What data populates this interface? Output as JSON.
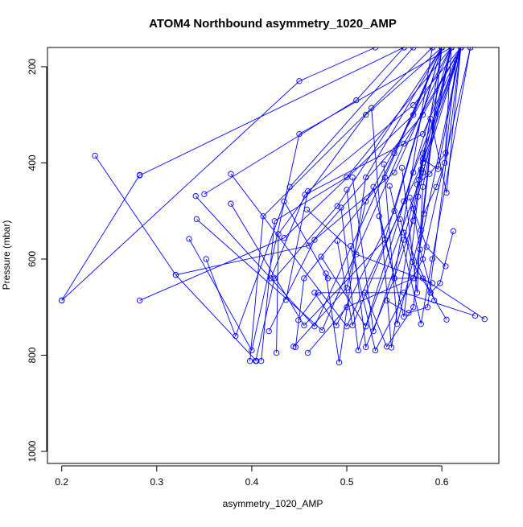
{
  "chart_data": {
    "type": "line",
    "title": "ATOM4 Northbound asymmetry_1020_AMP",
    "xlabel": "asymmetry_1020_AMP",
    "ylabel": "Pressure (mbar)",
    "xlim": [
      0.185,
      0.66
    ],
    "ylim": [
      1025,
      160
    ],
    "y_reversed": true,
    "x_ticks": [
      "0.2",
      "0.3",
      "0.4",
      "0.5",
      "0.6"
    ],
    "x_tick_values": [
      0.2,
      0.3,
      0.4,
      0.5,
      0.6
    ],
    "y_ticks": [
      "200",
      "400",
      "600",
      "800",
      "1000"
    ],
    "y_tick_values": [
      200,
      400,
      600,
      800,
      1000
    ],
    "grid": false,
    "legend": "none",
    "line_color": "#0000ff",
    "marker": "open-circle",
    "series": [
      {
        "points": [
          [
            0.2,
            686
          ],
          [
            0.45,
            230
          ],
          [
            0.53,
            160
          ]
        ]
      },
      {
        "points": [
          [
            0.235,
            385
          ],
          [
            0.32,
            633
          ],
          [
            0.405,
            812
          ]
        ]
      },
      {
        "points": [
          [
            0.282,
            425
          ],
          [
            0.2,
            686
          ]
        ]
      },
      {
        "points": [
          [
            0.282,
            426
          ],
          [
            0.56,
            160
          ]
        ]
      },
      {
        "points": [
          [
            0.282,
            686
          ],
          [
            0.434,
            556
          ],
          [
            0.57,
            300
          ],
          [
            0.6,
            160
          ]
        ]
      },
      {
        "points": [
          [
            0.32,
            633
          ],
          [
            0.46,
            572
          ],
          [
            0.58,
            300
          ],
          [
            0.62,
            160
          ]
        ]
      },
      {
        "points": [
          [
            0.334,
            558
          ],
          [
            0.4,
            790
          ],
          [
            0.45,
            340
          ],
          [
            0.61,
            160
          ]
        ]
      },
      {
        "points": [
          [
            0.341,
            469
          ],
          [
            0.466,
            740
          ],
          [
            0.55,
            380
          ],
          [
            0.6,
            160
          ]
        ]
      },
      {
        "points": [
          [
            0.342,
            517
          ],
          [
            0.474,
            748
          ],
          [
            0.56,
            360
          ],
          [
            0.62,
            160
          ]
        ]
      },
      {
        "points": [
          [
            0.35,
            465
          ],
          [
            0.51,
            270
          ],
          [
            0.56,
            160
          ]
        ]
      },
      {
        "points": [
          [
            0.352,
            600
          ],
          [
            0.383,
            760
          ],
          [
            0.44,
            450
          ],
          [
            0.57,
            160
          ]
        ]
      },
      {
        "points": [
          [
            0.378,
            423
          ],
          [
            0.5,
            740
          ],
          [
            0.58,
            400
          ],
          [
            0.62,
            160
          ]
        ]
      },
      {
        "points": [
          [
            0.378,
            485
          ],
          [
            0.455,
            738
          ],
          [
            0.54,
            560
          ],
          [
            0.6,
            160
          ]
        ]
      },
      {
        "points": [
          [
            0.398,
            812
          ],
          [
            0.412,
            511
          ],
          [
            0.59,
            160
          ]
        ]
      },
      {
        "points": [
          [
            0.404,
            812
          ],
          [
            0.424,
            640
          ],
          [
            0.49,
            490
          ],
          [
            0.6,
            160
          ]
        ]
      },
      {
        "points": [
          [
            0.41,
            812
          ],
          [
            0.424,
            521
          ],
          [
            0.5,
            430
          ],
          [
            0.61,
            160
          ]
        ]
      },
      {
        "points": [
          [
            0.418,
            750
          ],
          [
            0.466,
            560
          ],
          [
            0.55,
            420
          ],
          [
            0.61,
            160
          ]
        ]
      },
      {
        "points": [
          [
            0.42,
            640
          ],
          [
            0.456,
            466
          ],
          [
            0.58,
            340
          ],
          [
            0.62,
            160
          ]
        ]
      },
      {
        "points": [
          [
            0.426,
            795
          ],
          [
            0.428,
            548
          ],
          [
            0.52,
            300
          ],
          [
            0.6,
            160
          ]
        ]
      },
      {
        "points": [
          [
            0.436,
            685
          ],
          [
            0.459,
            459
          ],
          [
            0.57,
            280
          ],
          [
            0.62,
            160
          ]
        ]
      },
      {
        "points": [
          [
            0.434,
            480
          ],
          [
            0.48,
            640
          ],
          [
            0.58,
            640
          ],
          [
            0.645,
            725
          ]
        ]
      },
      {
        "points": [
          [
            0.444,
            782
          ],
          [
            0.5,
            660
          ],
          [
            0.52,
            480
          ],
          [
            0.61,
            160
          ]
        ]
      },
      {
        "points": [
          [
            0.446,
            783
          ],
          [
            0.455,
            640
          ],
          [
            0.54,
            430
          ],
          [
            0.6,
            160
          ]
        ]
      },
      {
        "points": [
          [
            0.449,
            727
          ],
          [
            0.47,
            670
          ],
          [
            0.56,
            670
          ],
          [
            0.635,
            718
          ]
        ]
      },
      {
        "points": [
          [
            0.459,
            795
          ],
          [
            0.5,
            700
          ],
          [
            0.57,
            640
          ],
          [
            0.62,
            160
          ]
        ]
      },
      {
        "points": [
          [
            0.458,
            497
          ],
          [
            0.51,
            590
          ],
          [
            0.59,
            650
          ]
        ]
      },
      {
        "points": [
          [
            0.466,
            670
          ],
          [
            0.489,
            738
          ],
          [
            0.55,
            500
          ],
          [
            0.6,
            160
          ]
        ]
      },
      {
        "points": [
          [
            0.473,
            595
          ],
          [
            0.52,
            740
          ],
          [
            0.58,
            420
          ],
          [
            0.62,
            160
          ]
        ]
      },
      {
        "points": [
          [
            0.478,
            630
          ],
          [
            0.492,
            815
          ],
          [
            0.52,
            430
          ],
          [
            0.6,
            160
          ]
        ]
      },
      {
        "points": [
          [
            0.49,
            562
          ],
          [
            0.506,
            738
          ],
          [
            0.56,
            480
          ],
          [
            0.61,
            160
          ]
        ]
      },
      {
        "points": [
          [
            0.494,
            493
          ],
          [
            0.512,
            790
          ],
          [
            0.57,
            420
          ],
          [
            0.62,
            160
          ]
        ]
      },
      {
        "points": [
          [
            0.5,
            456
          ],
          [
            0.52,
            783
          ],
          [
            0.55,
            640
          ],
          [
            0.59,
            160
          ]
        ]
      },
      {
        "points": [
          [
            0.504,
            573
          ],
          [
            0.53,
            790
          ],
          [
            0.58,
            600
          ],
          [
            0.63,
            160
          ]
        ]
      },
      {
        "points": [
          [
            0.506,
            430
          ],
          [
            0.528,
            750
          ],
          [
            0.56,
            560
          ],
          [
            0.61,
            160
          ]
        ]
      },
      {
        "points": [
          [
            0.519,
            670
          ],
          [
            0.542,
            782
          ],
          [
            0.57,
            700
          ],
          [
            0.6,
            160
          ]
        ]
      },
      {
        "points": [
          [
            0.526,
            286
          ],
          [
            0.547,
            784
          ],
          [
            0.58,
            380
          ],
          [
            0.62,
            160
          ]
        ]
      },
      {
        "points": [
          [
            0.528,
            450
          ],
          [
            0.55,
            640
          ],
          [
            0.57,
            520
          ],
          [
            0.6,
            160
          ]
        ]
      },
      {
        "points": [
          [
            0.534,
            511
          ],
          [
            0.56,
            720
          ],
          [
            0.575,
            470
          ],
          [
            0.61,
            160
          ]
        ]
      },
      {
        "points": [
          [
            0.539,
            403
          ],
          [
            0.553,
            735
          ],
          [
            0.578,
            540
          ],
          [
            0.6,
            160
          ]
        ]
      },
      {
        "points": [
          [
            0.542,
            686
          ],
          [
            0.565,
            712
          ],
          [
            0.585,
            700
          ],
          [
            0.62,
            160
          ]
        ]
      },
      {
        "points": [
          [
            0.545,
            448
          ],
          [
            0.578,
            735
          ],
          [
            0.59,
            600
          ],
          [
            0.63,
            160
          ]
        ]
      },
      {
        "points": [
          [
            0.556,
            517
          ],
          [
            0.569,
            606
          ],
          [
            0.588,
            670
          ],
          [
            0.605,
            726
          ]
        ]
      },
      {
        "points": [
          [
            0.558,
            410
          ],
          [
            0.574,
            670
          ],
          [
            0.58,
            450
          ],
          [
            0.61,
            160
          ]
        ]
      },
      {
        "points": [
          [
            0.56,
            545
          ],
          [
            0.588,
            670
          ],
          [
            0.598,
            650
          ],
          [
            0.612,
            542
          ]
        ]
      },
      {
        "points": [
          [
            0.566,
            472
          ],
          [
            0.584,
            575
          ],
          [
            0.604,
            615
          ]
        ]
      },
      {
        "points": [
          [
            0.57,
            495
          ],
          [
            0.577,
            580
          ],
          [
            0.592,
            686
          ]
        ]
      },
      {
        "points": [
          [
            0.574,
            445
          ],
          [
            0.587,
            423
          ],
          [
            0.604,
            380
          ],
          [
            0.615,
            186
          ]
        ]
      },
      {
        "points": [
          [
            0.576,
            435
          ],
          [
            0.58,
            392
          ],
          [
            0.596,
            413
          ],
          [
            0.62,
            160
          ]
        ]
      },
      {
        "points": [
          [
            0.578,
            414
          ],
          [
            0.588,
            308
          ],
          [
            0.605,
            462
          ],
          [
            0.62,
            160
          ]
        ]
      },
      {
        "points": [
          [
            0.581,
            506
          ],
          [
            0.594,
            450
          ],
          [
            0.603,
            400
          ],
          [
            0.61,
            160
          ]
        ]
      }
    ]
  }
}
